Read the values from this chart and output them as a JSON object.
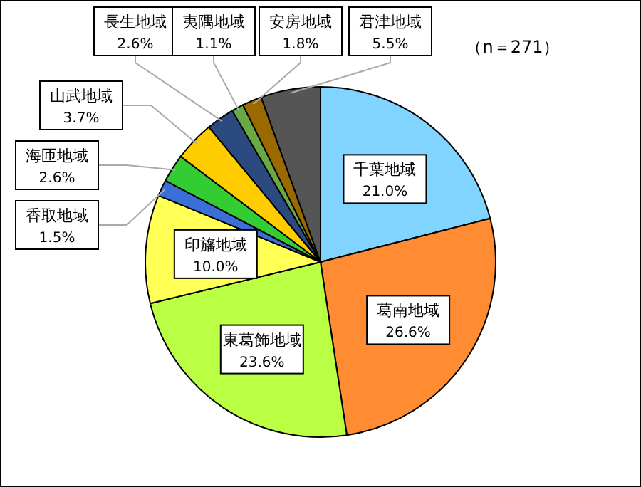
{
  "chart_data": {
    "type": "pie",
    "categories": [
      "千葉地域",
      "葛南地域",
      "東葛飾地域",
      "印旛地域",
      "香取地域",
      "海匝地域",
      "山武地域",
      "長生地域",
      "夷隅地域",
      "安房地域",
      "君津地域"
    ],
    "values": [
      21.0,
      26.6,
      23.6,
      10.0,
      1.5,
      2.6,
      3.7,
      2.6,
      1.1,
      1.8,
      5.5
    ],
    "colors": [
      "#80d4ff",
      "#ff8c33",
      "#bbff44",
      "#ffff55",
      "#3a6fd8",
      "#33cc33",
      "#ffcc00",
      "#2a4a80",
      "#6aaa44",
      "#9a6a00",
      "#555555"
    ],
    "value_labels": [
      "21.0%",
      "26.6%",
      "23.6%",
      "10.0%",
      "1.5%",
      "2.6%",
      "3.7%",
      "2.6%",
      "1.1%",
      "1.8%",
      "5.5%"
    ],
    "annotations": [
      "（n＝271）"
    ]
  }
}
